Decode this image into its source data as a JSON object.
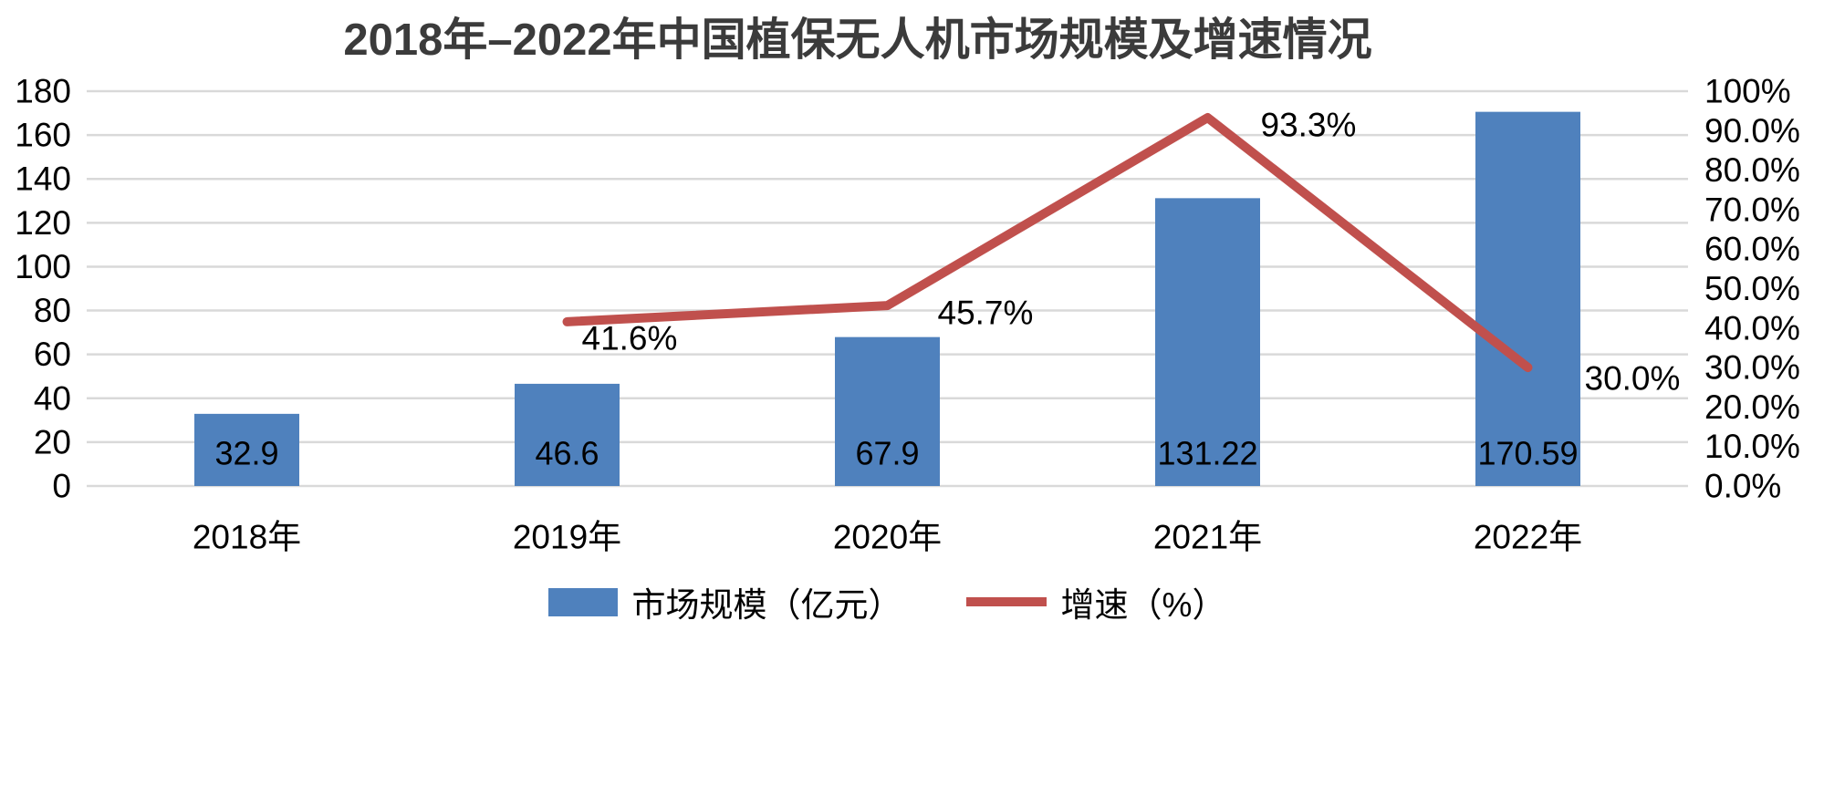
{
  "title": "2018年–2022年中国植保无人机市场规模及增速情况",
  "colors": {
    "bar": "#4F81BD",
    "line": "#C0504D",
    "grid": "#D9D9D9",
    "title_text": "#3B3B3B",
    "axis_text": "#000000"
  },
  "chart_data": {
    "type": "combo",
    "subtypes": [
      "bar",
      "line"
    ],
    "title": "2018年–2022年中国植保无人机市场规模及增速情况",
    "categories": [
      "2018年",
      "2019年",
      "2020年",
      "2021年",
      "2022年"
    ],
    "series": [
      {
        "name": "市场规模（亿元）",
        "type": "bar",
        "axis": "left",
        "values": [
          32.9,
          46.6,
          67.9,
          131.22,
          170.59
        ],
        "labels": [
          "32.9",
          "46.6",
          "67.9",
          "131.22",
          "170.59"
        ]
      },
      {
        "name": "增速（%）",
        "type": "line",
        "axis": "right",
        "values": [
          null,
          41.6,
          45.7,
          93.3,
          30.0
        ],
        "labels": [
          null,
          "41.6%",
          "45.7%",
          "93.3%",
          "30.0%"
        ]
      }
    ],
    "left_axis": {
      "min": 0,
      "max": 180,
      "step": 20,
      "tick_labels": [
        "0",
        "20",
        "40",
        "60",
        "80",
        "100",
        "120",
        "140",
        "160",
        "180"
      ]
    },
    "right_axis": {
      "min": 0,
      "max": 100,
      "step": 10,
      "tick_labels": [
        "0.0%",
        "10.0%",
        "20.0%",
        "30.0%",
        "40.0%",
        "50.0%",
        "60.0%",
        "70.0%",
        "80.0%",
        "90.0%",
        "100%"
      ]
    },
    "grid": true,
    "legend_position": "bottom"
  },
  "legend": {
    "items": [
      {
        "label": "市场规模（亿元）",
        "swatch": "bar"
      },
      {
        "label": "增速（%）",
        "swatch": "line"
      }
    ]
  }
}
